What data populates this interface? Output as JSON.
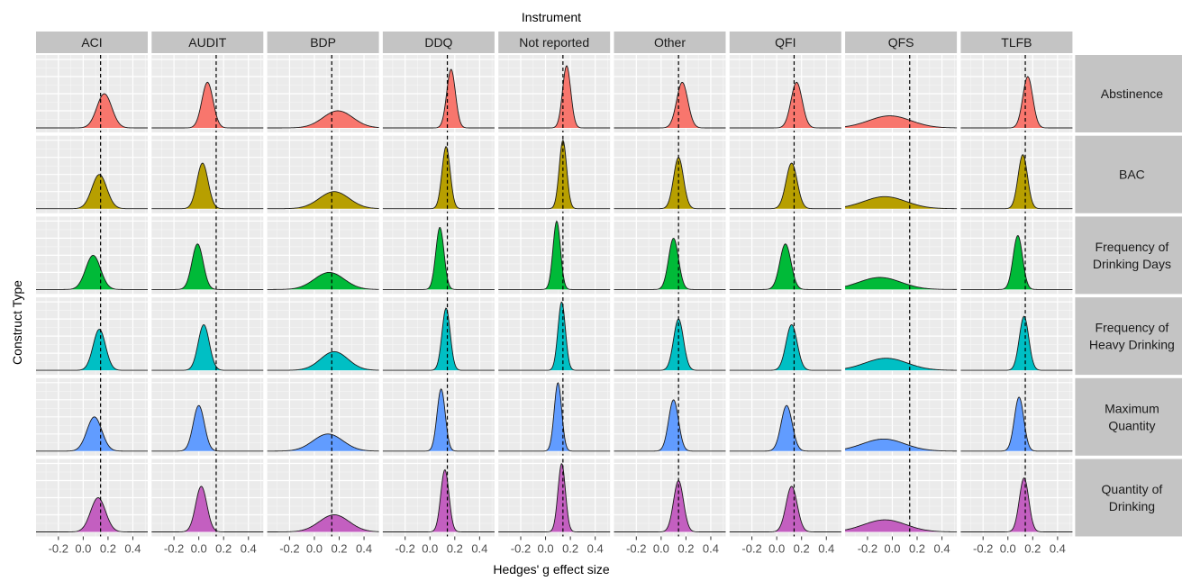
{
  "chart_data": {
    "type": "density",
    "title": "",
    "xlabel": "Hedges' g effect size",
    "ylabel": "Construct Type",
    "facet_col_title": "Instrument",
    "instruments": [
      "ACI",
      "AUDIT",
      "BDP",
      "DDQ",
      "Not reported",
      "Other",
      "QFI",
      "QFS",
      "TLFB"
    ],
    "construct_types": [
      {
        "label": [
          "Abstinence"
        ],
        "color": "#F8766D"
      },
      {
        "label": [
          "BAC"
        ],
        "color": "#B79F00"
      },
      {
        "label": [
          "Frequency of",
          "Drinking Days"
        ],
        "color": "#00BA38"
      },
      {
        "label": [
          "Frequency of",
          "Heavy Drinking"
        ],
        "color": "#00BFC4"
      },
      {
        "label": [
          "Maximum",
          "Quantity"
        ],
        "color": "#619CFF"
      },
      {
        "label": [
          "Quantity of",
          "Drinking"
        ],
        "color": "#C35FC0"
      }
    ],
    "xlim": [
      -0.38,
      0.52
    ],
    "x_ticks": [
      -0.2,
      0.0,
      0.2,
      0.4
    ],
    "x_tick_labels": [
      "-0.2",
      "0.0",
      "0.2",
      "0.4"
    ],
    "reference_line_x": 0.14,
    "grid": true,
    "density_params": {
      "ACI": {
        "mean": [
          0.17,
          0.13,
          0.08,
          0.13,
          0.09,
          0.12
        ],
        "sd": [
          0.06,
          0.06,
          0.06,
          0.05,
          0.06,
          0.06
        ]
      },
      "AUDIT": {
        "mean": [
          0.07,
          0.03,
          -0.01,
          0.04,
          0.0,
          0.02
        ],
        "sd": [
          0.045,
          0.045,
          0.045,
          0.045,
          0.045,
          0.045
        ]
      },
      "BDP": {
        "mean": [
          0.19,
          0.16,
          0.12,
          0.16,
          0.11,
          0.16
        ],
        "sd": [
          0.12,
          0.12,
          0.12,
          0.11,
          0.12,
          0.12
        ]
      },
      "DDQ": {
        "mean": [
          0.17,
          0.13,
          0.08,
          0.13,
          0.09,
          0.12
        ],
        "sd": [
          0.035,
          0.033,
          0.033,
          0.033,
          0.033,
          0.033
        ]
      },
      "Not reported": {
        "mean": [
          0.17,
          0.14,
          0.09,
          0.13,
          0.1,
          0.13
        ],
        "sd": [
          0.033,
          0.03,
          0.03,
          0.03,
          0.03,
          0.03
        ]
      },
      "Other": {
        "mean": [
          0.17,
          0.14,
          0.1,
          0.14,
          0.1,
          0.14
        ],
        "sd": [
          0.045,
          0.04,
          0.04,
          0.04,
          0.04,
          0.04
        ]
      },
      "QFI": {
        "mean": [
          0.16,
          0.12,
          0.07,
          0.12,
          0.08,
          0.12
        ],
        "sd": [
          0.045,
          0.045,
          0.045,
          0.045,
          0.045,
          0.045
        ]
      },
      "QFS": {
        "mean": [
          -0.02,
          -0.06,
          -0.1,
          -0.05,
          -0.07,
          -0.06
        ],
        "sd": [
          0.17,
          0.17,
          0.17,
          0.17,
          0.17,
          0.17
        ]
      },
      "TLFB": {
        "mean": [
          0.16,
          0.12,
          0.08,
          0.13,
          0.09,
          0.13
        ],
        "sd": [
          0.04,
          0.038,
          0.038,
          0.038,
          0.038,
          0.038
        ]
      }
    }
  }
}
